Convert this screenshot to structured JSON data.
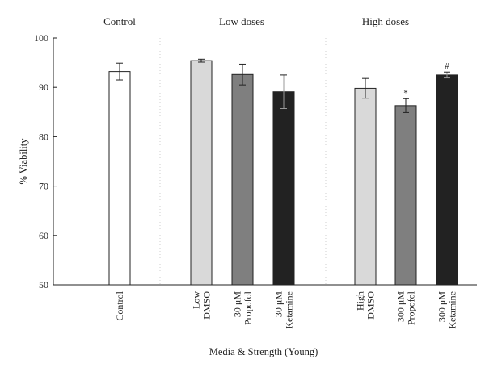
{
  "chart_data": {
    "type": "bar",
    "title": "",
    "xlabel": "Media & Strength (Young)",
    "ylabel": "% Viability",
    "ylim": [
      50,
      100
    ],
    "yticks": [
      50,
      60,
      70,
      80,
      90,
      100
    ],
    "grid": false,
    "groups": [
      "Control",
      "Low doses",
      "High doses"
    ],
    "categories": [
      {
        "lines": [
          "Control"
        ],
        "group": "Control"
      },
      {
        "lines": [
          "Low",
          "DMSO"
        ],
        "group": "Low doses"
      },
      {
        "lines": [
          "30 μM",
          "Propofol"
        ],
        "group": "Low doses"
      },
      {
        "lines": [
          "30 μM",
          "Ketamine"
        ],
        "group": "Low doses"
      },
      {
        "lines": [
          "High",
          "DMSO"
        ],
        "group": "High doses"
      },
      {
        "lines": [
          "300 μM",
          "Propofol"
        ],
        "group": "High doses"
      },
      {
        "lines": [
          "300 μM",
          "Ketamine"
        ],
        "group": "High doses"
      }
    ],
    "values": [
      93.2,
      95.4,
      92.6,
      89.1,
      89.8,
      86.3,
      92.5
    ],
    "errors": [
      1.7,
      0.3,
      2.1,
      3.4,
      2.0,
      1.4,
      0.6
    ],
    "annotations": [
      "",
      "",
      "",
      "",
      "",
      "*",
      "#"
    ],
    "colors": [
      "#ffffff",
      "#d9d9d9",
      "#7f7f7f",
      "#222222",
      "#d9d9d9",
      "#7f7f7f",
      "#222222"
    ]
  }
}
